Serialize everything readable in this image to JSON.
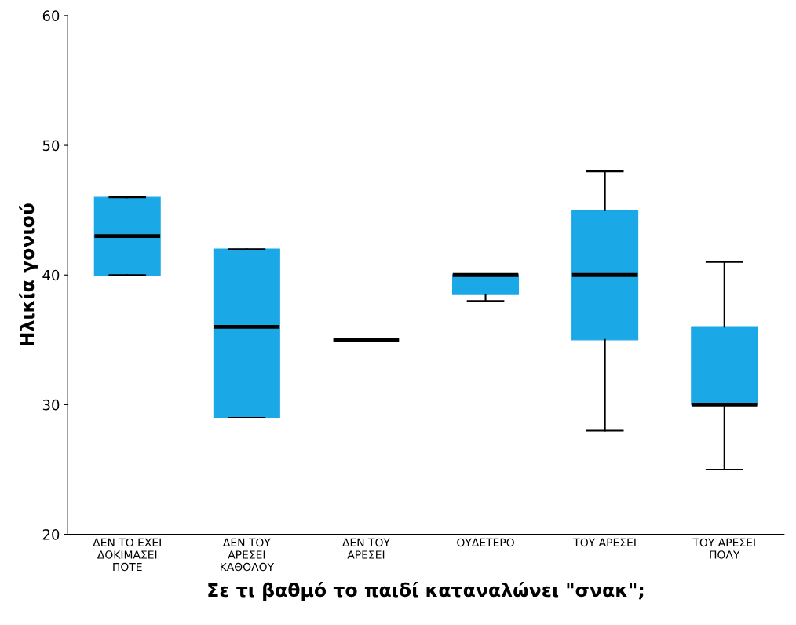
{
  "chart_data": {
    "type": "box",
    "xlabel": "Σε τι βαθμό το παιδί καταναλώνει \"σνακ\";",
    "ylabel": "Ηλικία γονιού",
    "categories": [
      "ΔΕΝ ΤΟ ΕΧΕΙ\nΔΟΚΙΜΑΣΕΙ\nΠΟΤΕ",
      "ΔΕΝ ΤΟΥ\nΑΡΕΣΕΙ\nΚΑΘΟΛΟΥ",
      "ΔΕΝ ΤΟΥ\nΑΡΕΣΕΙ",
      "ΟΥΔΕΤΕΡΟ",
      "ΤΟΥ ΑΡΕΣΕΙ",
      "ΤΟΥ ΑΡΕΣΕΙ\nΠΟΛΥ"
    ],
    "color": "#1aa9e6",
    "boxes": [
      {
        "low": 40,
        "q1": 40,
        "median": 43,
        "q3": 46,
        "high": 46
      },
      {
        "low": 29,
        "q1": 29,
        "median": 36,
        "q3": 42,
        "high": 42
      },
      {
        "low": 35,
        "q1": 35,
        "median": 35,
        "q3": 35,
        "high": 35
      },
      {
        "low": 38,
        "q1": 38.5,
        "median": 40,
        "q3": 40,
        "high": 40
      },
      {
        "low": 28,
        "q1": 35,
        "median": 40,
        "q3": 45,
        "high": 48
      },
      {
        "low": 25,
        "q1": 30,
        "median": 30,
        "q3": 36,
        "high": 41
      }
    ],
    "ylim": [
      20,
      60
    ],
    "yticks": [
      20,
      30,
      40,
      50,
      60
    ],
    "grid": false
  }
}
